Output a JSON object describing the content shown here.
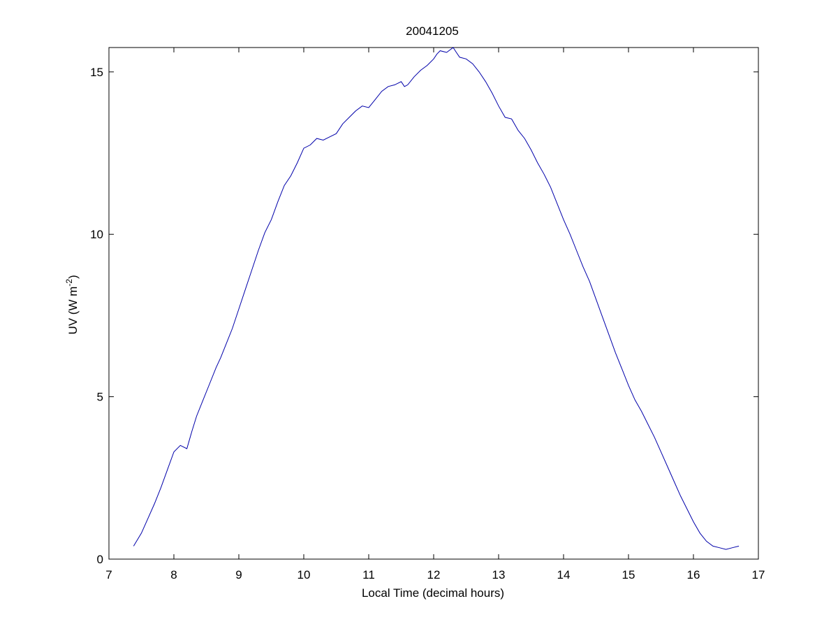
{
  "chart_data": {
    "type": "line",
    "title": "20041205",
    "xlabel": "Local Time (decimal hours)",
    "ylabel": {
      "prefix": "UV (W m",
      "superscript": "-2",
      "suffix": ")"
    },
    "xlim": [
      7,
      17
    ],
    "ylim": [
      0,
      15.75
    ],
    "xticks": [
      7,
      8,
      9,
      10,
      11,
      12,
      13,
      14,
      15,
      16,
      17
    ],
    "yticks": [
      0,
      5,
      10,
      15
    ],
    "grid": false,
    "legend": "none",
    "series": [
      {
        "color": "#0000aa",
        "x": [
          7.38,
          7.5,
          7.6,
          7.7,
          7.8,
          7.9,
          8.0,
          8.1,
          8.2,
          8.25,
          8.28,
          8.35,
          8.45,
          8.55,
          8.65,
          8.72,
          8.8,
          8.9,
          9.0,
          9.1,
          9.2,
          9.3,
          9.4,
          9.5,
          9.6,
          9.7,
          9.8,
          9.9,
          10.0,
          10.1,
          10.2,
          10.3,
          10.4,
          10.5,
          10.6,
          10.7,
          10.8,
          10.9,
          11.0,
          11.1,
          11.2,
          11.3,
          11.4,
          11.5,
          11.55,
          11.6,
          11.7,
          11.8,
          11.9,
          12.0,
          12.05,
          12.1,
          12.2,
          12.3,
          12.35,
          12.4,
          12.5,
          12.6,
          12.7,
          12.8,
          12.9,
          13.0,
          13.1,
          13.2,
          13.3,
          13.4,
          13.5,
          13.6,
          13.7,
          13.8,
          13.9,
          14.0,
          14.1,
          14.2,
          14.3,
          14.4,
          14.5,
          14.6,
          14.7,
          14.8,
          14.9,
          15.0,
          15.1,
          15.2,
          15.3,
          15.4,
          15.5,
          15.6,
          15.7,
          15.8,
          15.9,
          16.0,
          16.1,
          16.2,
          16.3,
          16.4,
          16.5,
          16.6,
          16.7
        ],
        "y": [
          0.4,
          0.8,
          1.25,
          1.7,
          2.2,
          2.75,
          3.3,
          3.5,
          3.4,
          3.75,
          3.95,
          4.4,
          4.9,
          5.4,
          5.9,
          6.2,
          6.6,
          7.1,
          7.7,
          8.3,
          8.9,
          9.5,
          10.05,
          10.45,
          11.0,
          11.5,
          11.8,
          12.2,
          12.65,
          12.75,
          12.95,
          12.9,
          13.0,
          13.1,
          13.4,
          13.6,
          13.8,
          13.95,
          13.9,
          14.15,
          14.4,
          14.55,
          14.6,
          14.7,
          14.55,
          14.6,
          14.85,
          15.05,
          15.2,
          15.4,
          15.55,
          15.65,
          15.6,
          15.75,
          15.6,
          15.45,
          15.4,
          15.25,
          15.0,
          14.7,
          14.35,
          13.95,
          13.6,
          13.55,
          13.2,
          12.95,
          12.6,
          12.2,
          11.85,
          11.45,
          10.95,
          10.45,
          10.0,
          9.5,
          9.0,
          8.55,
          8.0,
          7.45,
          6.9,
          6.35,
          5.85,
          5.35,
          4.9,
          4.55,
          4.15,
          3.75,
          3.3,
          2.85,
          2.4,
          1.95,
          1.55,
          1.15,
          0.8,
          0.55,
          0.4,
          0.35,
          0.3,
          0.35,
          0.4
        ]
      }
    ]
  }
}
